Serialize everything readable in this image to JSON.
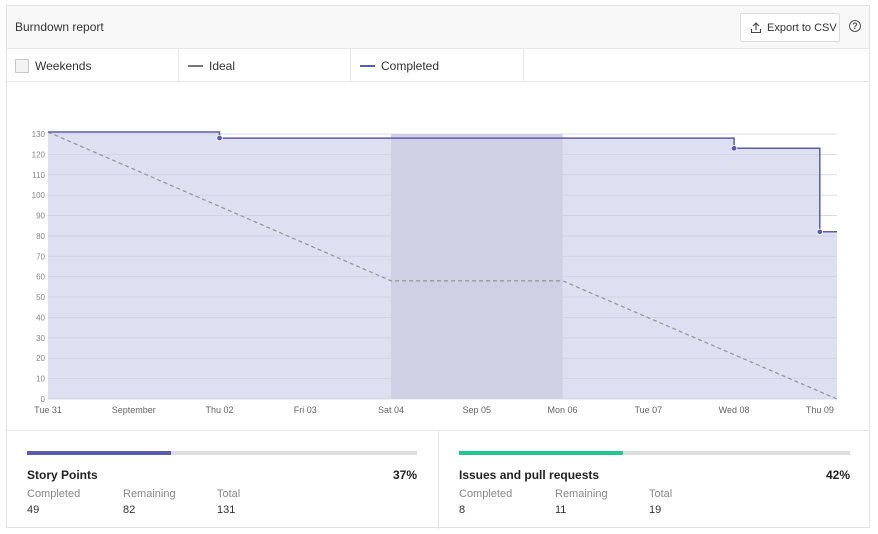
{
  "header": {
    "title": "Burndown report",
    "export_label": "Export to CSV",
    "help_glyph": "?"
  },
  "legend": {
    "weekends": "Weekends",
    "ideal": "Ideal",
    "completed": "Completed"
  },
  "colors": {
    "completed_line": "#5b5cb0",
    "completed_fill": "#dedff0",
    "ideal_line": "#999999",
    "weekend_shade": "#d0d0e4",
    "grid": "#cfd0e4",
    "story_bar": "#5b5cb0",
    "issues_bar": "#1dc98c"
  },
  "chart_data": {
    "type": "line",
    "title": "Burndown report",
    "xlabel": "",
    "ylabel": "Story Points",
    "ylim": [
      0,
      130
    ],
    "yticks": [
      0,
      10,
      20,
      30,
      40,
      50,
      60,
      70,
      80,
      90,
      100,
      110,
      120,
      130
    ],
    "xlim": [
      0,
      9.2
    ],
    "x_ticks": [
      {
        "x": 0,
        "label": "Tue 31"
      },
      {
        "x": 1,
        "label": "September"
      },
      {
        "x": 2,
        "label": "Thu 02"
      },
      {
        "x": 3,
        "label": "Fri 03"
      },
      {
        "x": 4,
        "label": "Sat 04"
      },
      {
        "x": 5,
        "label": "Sep 05"
      },
      {
        "x": 6,
        "label": "Mon 06"
      },
      {
        "x": 7,
        "label": "Tue 07"
      },
      {
        "x": 8,
        "label": "Wed 08"
      },
      {
        "x": 9,
        "label": "Thu 09"
      }
    ],
    "weekend_range": [
      4,
      6
    ],
    "series": [
      {
        "name": "Completed",
        "style": "step",
        "points": [
          [
            0,
            131
          ],
          [
            2,
            128
          ],
          [
            8,
            123
          ],
          [
            9,
            82
          ],
          [
            9.2,
            82
          ]
        ],
        "markers": [
          [
            2,
            128
          ],
          [
            8,
            123
          ],
          [
            9,
            82
          ]
        ]
      },
      {
        "name": "Ideal",
        "style": "dashed",
        "points": [
          [
            0,
            131
          ],
          [
            4,
            58
          ],
          [
            6,
            58
          ],
          [
            9.2,
            0
          ]
        ]
      }
    ]
  },
  "stats": {
    "story_points": {
      "title": "Story Points",
      "percent": "37%",
      "progress": 0.37,
      "completed_label": "Completed",
      "completed": "49",
      "remaining_label": "Remaining",
      "remaining": "82",
      "total_label": "Total",
      "total": "131"
    },
    "issues": {
      "title": "Issues and pull requests",
      "percent": "42%",
      "progress": 0.42,
      "completed_label": "Completed",
      "completed": "8",
      "remaining_label": "Remaining",
      "remaining": "11",
      "total_label": "Total",
      "total": "19"
    }
  }
}
